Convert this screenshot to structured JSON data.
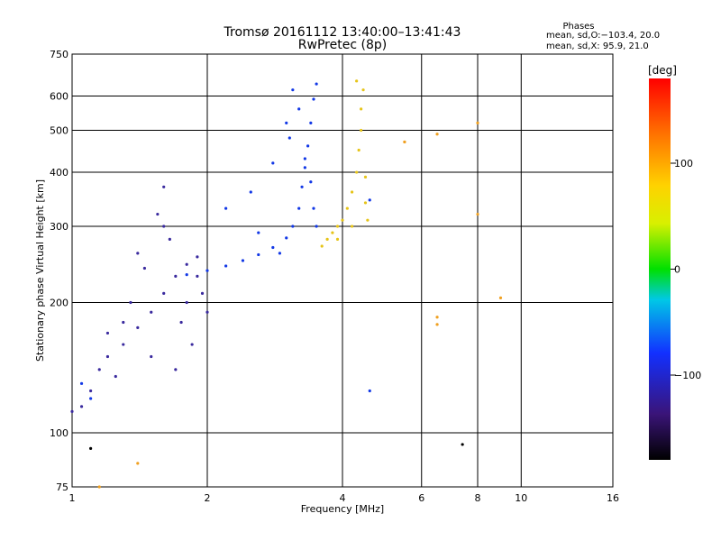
{
  "header": {
    "title": "Tromsø 20161112 13:40:00–13:41:43",
    "subtitle": "RwPretec (8p)",
    "stats_heading": "Phases",
    "stats_o": "mean, sd,O:−103.4, 20.0",
    "stats_x": "mean, sd,X:  95.9, 21.0"
  },
  "chart_data": {
    "type": "scatter",
    "xlabel": "Frequency [MHz]",
    "ylabel": "Stationary phase Virtual Height [km]",
    "x_scale": "log",
    "y_scale": "log",
    "xlim": [
      1,
      16
    ],
    "ylim": [
      75,
      750
    ],
    "x_ticks": [
      1,
      2,
      4,
      6,
      8,
      10,
      16
    ],
    "x_tick_labels": [
      "1",
      "2",
      "4",
      "6",
      "8",
      "10",
      "16"
    ],
    "y_ticks": [
      75,
      100,
      200,
      300,
      400,
      500,
      600,
      750
    ],
    "y_tick_labels": [
      "75",
      "100",
      "200",
      "300",
      "400",
      "500",
      "600",
      "750"
    ],
    "grid": true,
    "colorbar": {
      "label": "[deg]",
      "min": -180,
      "max": 180,
      "ticks": [
        100,
        0,
        -100
      ],
      "tick_labels": [
        "100",
        "0",
        "−100"
      ]
    },
    "series": [
      {
        "color": "#3a2a9e",
        "points": [
          [
            1.0,
            112
          ],
          [
            1.05,
            115
          ],
          [
            1.1,
            125
          ],
          [
            1.15,
            140
          ],
          [
            1.2,
            150
          ],
          [
            1.3,
            160
          ],
          [
            1.4,
            175
          ],
          [
            1.5,
            190
          ],
          [
            1.6,
            210
          ],
          [
            1.7,
            230
          ],
          [
            1.8,
            245
          ],
          [
            1.9,
            255
          ],
          [
            1.25,
            135
          ],
          [
            1.35,
            200
          ],
          [
            1.45,
            240
          ],
          [
            1.55,
            320
          ],
          [
            1.6,
            370
          ],
          [
            1.65,
            280
          ],
          [
            1.75,
            180
          ],
          [
            1.85,
            160
          ],
          [
            1.95,
            210
          ],
          [
            2.0,
            190
          ],
          [
            1.4,
            260
          ],
          [
            1.5,
            150
          ],
          [
            1.7,
            140
          ],
          [
            1.8,
            200
          ],
          [
            1.3,
            180
          ],
          [
            1.6,
            300
          ],
          [
            1.9,
            230
          ],
          [
            1.2,
            170
          ]
        ]
      },
      {
        "color": "#1238e6",
        "points": [
          [
            1.8,
            232
          ],
          [
            2.0,
            237
          ],
          [
            2.2,
            243
          ],
          [
            2.4,
            250
          ],
          [
            2.6,
            258
          ],
          [
            2.8,
            268
          ],
          [
            3.0,
            282
          ],
          [
            3.1,
            300
          ],
          [
            3.2,
            330
          ],
          [
            3.25,
            370
          ],
          [
            3.3,
            410
          ],
          [
            3.35,
            460
          ],
          [
            3.4,
            520
          ],
          [
            3.45,
            590
          ],
          [
            3.5,
            640
          ],
          [
            3.3,
            430
          ],
          [
            3.4,
            380
          ],
          [
            3.45,
            330
          ],
          [
            3.5,
            300
          ],
          [
            2.5,
            360
          ],
          [
            2.8,
            420
          ],
          [
            3.0,
            520
          ],
          [
            3.1,
            620
          ],
          [
            2.2,
            330
          ],
          [
            2.6,
            290
          ],
          [
            2.9,
            260
          ],
          [
            3.05,
            480
          ],
          [
            3.2,
            560
          ],
          [
            1.05,
            130
          ],
          [
            1.1,
            120
          ],
          [
            4.6,
            125
          ],
          [
            4.6,
            345
          ]
        ]
      },
      {
        "color": "#e6c419",
        "points": [
          [
            3.6,
            270
          ],
          [
            3.7,
            280
          ],
          [
            3.8,
            290
          ],
          [
            3.9,
            300
          ],
          [
            4.0,
            310
          ],
          [
            4.1,
            330
          ],
          [
            4.2,
            360
          ],
          [
            4.3,
            400
          ],
          [
            4.35,
            450
          ],
          [
            4.4,
            500
          ],
          [
            4.4,
            560
          ],
          [
            4.45,
            620
          ],
          [
            4.5,
            390
          ],
          [
            4.5,
            340
          ],
          [
            4.55,
            310
          ],
          [
            4.3,
            650
          ],
          [
            3.9,
            280
          ],
          [
            4.2,
            300
          ]
        ]
      },
      {
        "color": "#f0a020",
        "points": [
          [
            6.5,
            490
          ],
          [
            8.0,
            520
          ],
          [
            8.0,
            320
          ],
          [
            5.5,
            470
          ],
          [
            5.5,
            470
          ],
          [
            6.5,
            185
          ],
          [
            6.5,
            178
          ],
          [
            9.0,
            205
          ],
          [
            1.4,
            85
          ],
          [
            1.15,
            75
          ]
        ]
      },
      {
        "color": "#000000",
        "points": [
          [
            1.1,
            92
          ],
          [
            7.4,
            94
          ]
        ]
      }
    ]
  }
}
